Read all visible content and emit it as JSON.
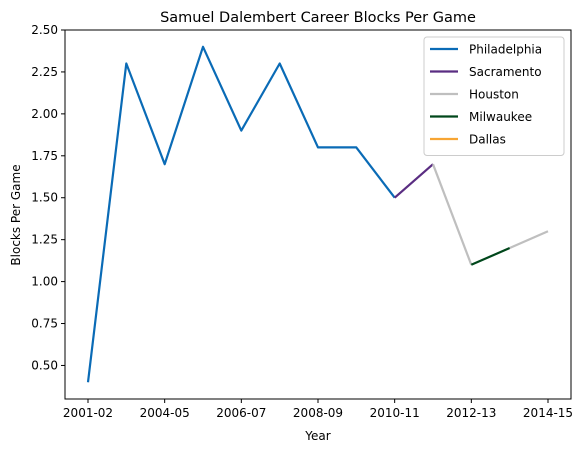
{
  "chart_data": {
    "type": "line",
    "title": "Samuel Dalembert Career Blocks Per Game",
    "xlabel": "Year",
    "ylabel": "Blocks Per Game",
    "x_tick_labels": [
      "2001-02",
      "2004-05",
      "2006-07",
      "2008-09",
      "2010-11",
      "2012-13",
      "2014-15"
    ],
    "y_ticks": [
      "0.50",
      "0.75",
      "1.00",
      "1.25",
      "1.50",
      "1.75",
      "2.00",
      "2.25",
      "2.50"
    ],
    "xlim": [
      -0.6,
      12.6
    ],
    "ylim": [
      0.3,
      2.5
    ],
    "grid": false,
    "legend_position": "top-right",
    "series": [
      {
        "name": "Philadelphia",
        "color": "#0a6bb6",
        "points": [
          [
            0,
            0.4
          ],
          [
            1,
            2.3
          ],
          [
            2,
            1.7
          ],
          [
            3,
            2.4
          ],
          [
            4,
            1.9
          ],
          [
            5,
            2.3
          ],
          [
            6,
            1.8
          ],
          [
            7,
            1.8
          ],
          [
            8,
            1.5
          ]
        ]
      },
      {
        "name": "Sacramento",
        "color": "#5a2d82",
        "points": [
          [
            8,
            1.5
          ],
          [
            9,
            1.7
          ]
        ]
      },
      {
        "name": "Houston",
        "color": "#bfbfbf",
        "points": [
          [
            9,
            1.7
          ],
          [
            10,
            1.1
          ]
        ]
      },
      {
        "name": "Milwaukee",
        "color": "#00471b",
        "points": [
          [
            10,
            1.1
          ],
          [
            11,
            1.2
          ]
        ]
      },
      {
        "name": "Houston",
        "color": "#bfbfbf",
        "points": [
          [
            11,
            1.2
          ],
          [
            12,
            1.3
          ]
        ]
      },
      {
        "name": "Dallas",
        "color": "#f7a533",
        "points": []
      }
    ],
    "legend": [
      {
        "label": "Philadelphia",
        "color": "#0a6bb6"
      },
      {
        "label": "Sacramento",
        "color": "#5a2d82"
      },
      {
        "label": "Houston",
        "color": "#bfbfbf"
      },
      {
        "label": "Milwaukee",
        "color": "#00471b"
      },
      {
        "label": "Dallas",
        "color": "#f7a533"
      }
    ]
  }
}
